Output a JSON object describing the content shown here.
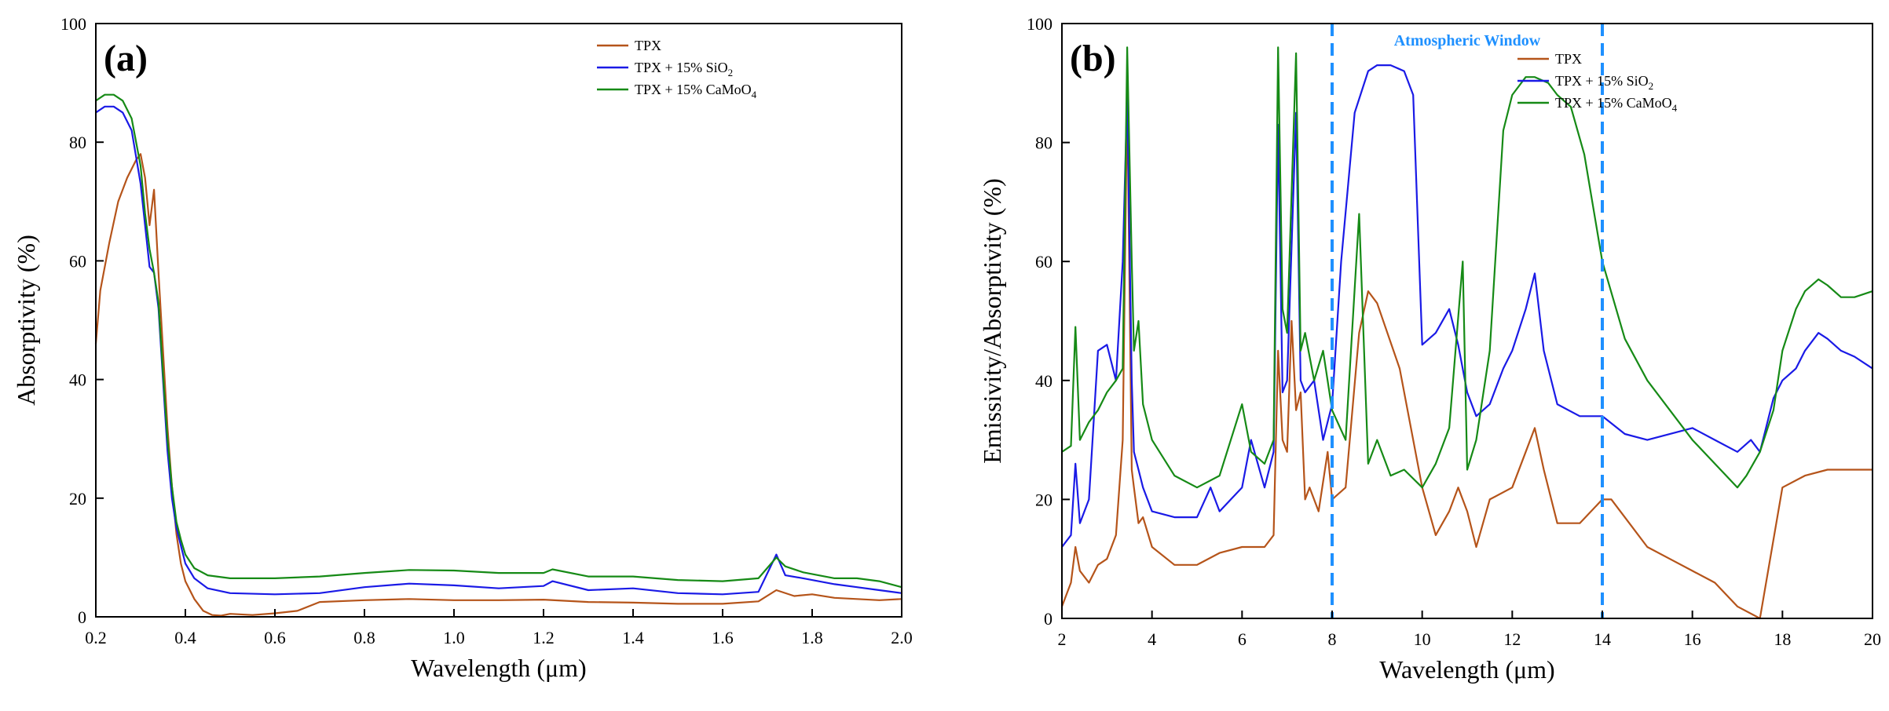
{
  "chart_data": [
    {
      "type": "line",
      "panel_label": "(a)",
      "xlabel": "Wavelength (μm)",
      "ylabel": "Absorptivity (%)",
      "xlim": [
        0.2,
        2.0
      ],
      "ylim": [
        0,
        100
      ],
      "xticks": [
        "0.2",
        "0.4",
        "0.6",
        "0.8",
        "1.0",
        "1.2",
        "1.4",
        "1.6",
        "1.8",
        "2.0"
      ],
      "yticks": [
        "0",
        "20",
        "40",
        "60",
        "80",
        "100"
      ],
      "legend_position": "top-right",
      "series": [
        {
          "name": "TPX",
          "legend_main": "TPX",
          "legend_sub": "",
          "legend_after": "",
          "color": "#b5541a",
          "x": [
            0.2,
            0.21,
            0.23,
            0.25,
            0.27,
            0.29,
            0.3,
            0.31,
            0.32,
            0.33,
            0.34,
            0.35,
            0.36,
            0.37,
            0.38,
            0.39,
            0.4,
            0.42,
            0.44,
            0.46,
            0.48,
            0.5,
            0.55,
            0.6,
            0.65,
            0.7,
            0.8,
            0.9,
            1.0,
            1.1,
            1.2,
            1.3,
            1.4,
            1.5,
            1.6,
            1.68,
            1.72,
            1.76,
            1.8,
            1.85,
            1.9,
            1.95,
            2.0
          ],
          "y": [
            46,
            55,
            63,
            70,
            74,
            77,
            78,
            74,
            66,
            72,
            58,
            45,
            32,
            22,
            14,
            9,
            6,
            3,
            1,
            0.3,
            0.2,
            0.5,
            0.3,
            0.6,
            1,
            2.5,
            2.8,
            3,
            2.8,
            2.8,
            2.9,
            2.5,
            2.4,
            2.2,
            2.2,
            2.6,
            4.5,
            3.5,
            3.8,
            3.2,
            3.0,
            2.8,
            3.0
          ]
        },
        {
          "name": "TPX + 15% SiO2",
          "legend_main": "TPX + 15% SiO",
          "legend_sub": "2",
          "legend_after": "",
          "color": "#1a1ae6",
          "x": [
            0.2,
            0.22,
            0.24,
            0.26,
            0.28,
            0.3,
            0.31,
            0.32,
            0.33,
            0.34,
            0.35,
            0.36,
            0.37,
            0.38,
            0.39,
            0.4,
            0.42,
            0.45,
            0.5,
            0.6,
            0.7,
            0.8,
            0.9,
            1.0,
            1.1,
            1.2,
            1.22,
            1.3,
            1.4,
            1.5,
            1.6,
            1.68,
            1.72,
            1.74,
            1.78,
            1.85,
            1.9,
            1.95,
            2.0
          ],
          "y": [
            85,
            86,
            86,
            85,
            82,
            73,
            66,
            59,
            58,
            52,
            40,
            28,
            20,
            15,
            12,
            9,
            6.5,
            4.8,
            4.0,
            3.8,
            4.0,
            5.0,
            5.6,
            5.3,
            4.8,
            5.2,
            6.0,
            4.5,
            4.8,
            4.0,
            3.8,
            4.2,
            10.5,
            7,
            6.5,
            5.5,
            5.0,
            4.5,
            4.0
          ]
        },
        {
          "name": "TPX + 15% CaMoO4",
          "legend_main": "TPX + 15% CaMoO",
          "legend_sub": "4",
          "legend_after": "",
          "color": "#168a16",
          "x": [
            0.2,
            0.22,
            0.24,
            0.26,
            0.28,
            0.3,
            0.31,
            0.32,
            0.33,
            0.34,
            0.35,
            0.36,
            0.37,
            0.38,
            0.39,
            0.4,
            0.42,
            0.45,
            0.5,
            0.6,
            0.7,
            0.8,
            0.9,
            1.0,
            1.1,
            1.2,
            1.22,
            1.3,
            1.4,
            1.5,
            1.6,
            1.68,
            1.72,
            1.74,
            1.78,
            1.85,
            1.9,
            1.95,
            2.0
          ],
          "y": [
            87,
            88,
            88,
            87,
            84,
            76,
            68,
            62,
            58,
            53,
            41,
            30,
            22,
            16,
            13,
            10.5,
            8.2,
            7.0,
            6.5,
            6.5,
            6.8,
            7.4,
            7.9,
            7.8,
            7.4,
            7.4,
            8.0,
            6.8,
            6.8,
            6.2,
            6.0,
            6.5,
            10.0,
            8.5,
            7.5,
            6.5,
            6.5,
            6.0,
            5.0
          ]
        }
      ]
    },
    {
      "type": "line",
      "panel_label": "(b)",
      "xlabel": "Wavelength (μm)",
      "ylabel": "Emissivity/Absorptivity (%)",
      "xlim": [
        2,
        20
      ],
      "ylim": [
        0,
        100
      ],
      "xticks": [
        "2",
        "4",
        "6",
        "8",
        "10",
        "12",
        "14",
        "16",
        "18",
        "20"
      ],
      "yticks": [
        "0",
        "20",
        "40",
        "60",
        "80",
        "100"
      ],
      "legend_position": "top-right",
      "annotation": "Atmospheric Window",
      "window_lines": [
        8,
        14
      ],
      "window_color": "#1e90ff",
      "series": [
        {
          "name": "TPX",
          "legend_main": "TPX",
          "legend_sub": "",
          "legend_after": "",
          "color": "#b5541a",
          "x": [
            2,
            2.2,
            2.3,
            2.4,
            2.6,
            2.8,
            3.0,
            3.2,
            3.35,
            3.45,
            3.55,
            3.6,
            3.7,
            3.8,
            4.0,
            4.5,
            5,
            5.5,
            6,
            6.5,
            6.7,
            6.8,
            6.9,
            7.0,
            7.1,
            7.2,
            7.3,
            7.4,
            7.5,
            7.7,
            7.9,
            8.0,
            8.3,
            8.6,
            8.8,
            9.0,
            9.5,
            10,
            10.3,
            10.6,
            10.8,
            11,
            11.2,
            11.5,
            12,
            12.3,
            12.5,
            12.7,
            13,
            13.5,
            14,
            14.2,
            14.6,
            15,
            15.5,
            16,
            16.5,
            17,
            17.5,
            18,
            18.5,
            19,
            20
          ],
          "y": [
            2,
            6,
            12,
            8,
            6,
            9,
            10,
            14,
            30,
            88,
            25,
            22,
            16,
            17,
            12,
            9,
            9,
            11,
            12,
            12,
            14,
            45,
            30,
            28,
            50,
            35,
            38,
            20,
            22,
            18,
            28,
            20,
            22,
            48,
            55,
            53,
            42,
            22,
            14,
            18,
            22,
            18,
            12,
            20,
            22,
            28,
            32,
            25,
            16,
            16,
            20,
            20,
            16,
            12,
            10,
            8,
            6,
            2,
            0,
            22,
            24,
            25,
            25
          ]
        },
        {
          "name": "TPX + 15% SiO2",
          "legend_main": "TPX + 15% SiO",
          "legend_sub": "2",
          "legend_after": "",
          "color": "#1a1ae6",
          "x": [
            2,
            2.2,
            2.3,
            2.4,
            2.6,
            2.8,
            3.0,
            3.2,
            3.35,
            3.45,
            3.55,
            3.6,
            3.7,
            3.8,
            4.0,
            4.5,
            5,
            5.3,
            5.5,
            6,
            6.2,
            6.5,
            6.7,
            6.8,
            6.9,
            7.0,
            7.2,
            7.3,
            7.4,
            7.6,
            7.8,
            8.0,
            8.2,
            8.5,
            8.8,
            9.0,
            9.3,
            9.6,
            9.8,
            10,
            10.3,
            10.6,
            10.8,
            11,
            11.2,
            11.5,
            11.8,
            12,
            12.3,
            12.5,
            12.7,
            13,
            13.5,
            14,
            14.5,
            15,
            16,
            16.5,
            17,
            17.3,
            17.5,
            17.8,
            18,
            18.3,
            18.5,
            18.8,
            19,
            19.3,
            19.6,
            20
          ],
          "y": [
            12,
            14,
            26,
            16,
            20,
            45,
            46,
            40,
            60,
            88,
            40,
            28,
            25,
            22,
            18,
            17,
            17,
            22,
            18,
            22,
            30,
            22,
            28,
            83,
            38,
            40,
            85,
            40,
            38,
            40,
            30,
            36,
            60,
            85,
            92,
            93,
            93,
            92,
            88,
            46,
            48,
            52,
            46,
            38,
            34,
            36,
            42,
            45,
            52,
            58,
            45,
            36,
            34,
            34,
            31,
            30,
            32,
            30,
            28,
            30,
            28,
            37,
            40,
            42,
            45,
            48,
            47,
            45,
            44,
            42
          ]
        },
        {
          "name": "TPX + 15% CaMoO4",
          "legend_main": "TPX + 15% CaMoO",
          "legend_sub": "4",
          "legend_after": "",
          "color": "#168a16",
          "x": [
            2,
            2.2,
            2.3,
            2.4,
            2.6,
            2.8,
            3.0,
            3.2,
            3.35,
            3.45,
            3.55,
            3.6,
            3.7,
            3.8,
            4.0,
            4.5,
            5,
            5.5,
            6,
            6.2,
            6.5,
            6.7,
            6.8,
            6.9,
            7.0,
            7.2,
            7.3,
            7.4,
            7.6,
            7.8,
            8.0,
            8.3,
            8.6,
            8.8,
            9.0,
            9.3,
            9.6,
            10,
            10.3,
            10.6,
            10.9,
            11,
            11.2,
            11.5,
            11.8,
            12,
            12.3,
            12.5,
            12.8,
            13,
            13.3,
            13.6,
            14,
            14.5,
            15,
            15.5,
            16,
            16.5,
            17,
            17.2,
            17.5,
            17.8,
            18,
            18.3,
            18.5,
            18.8,
            19,
            19.3,
            19.6,
            20
          ],
          "y": [
            28,
            29,
            49,
            30,
            33,
            35,
            38,
            40,
            42,
            96,
            60,
            45,
            50,
            36,
            30,
            24,
            22,
            24,
            36,
            28,
            26,
            30,
            96,
            52,
            48,
            95,
            45,
            48,
            40,
            45,
            35,
            30,
            68,
            26,
            30,
            24,
            25,
            22,
            26,
            32,
            60,
            25,
            30,
            45,
            82,
            88,
            91,
            91,
            90,
            88,
            86,
            78,
            60,
            47,
            40,
            35,
            30,
            26,
            22,
            24,
            28,
            35,
            45,
            52,
            55,
            57,
            56,
            54,
            54,
            55
          ]
        }
      ]
    }
  ]
}
